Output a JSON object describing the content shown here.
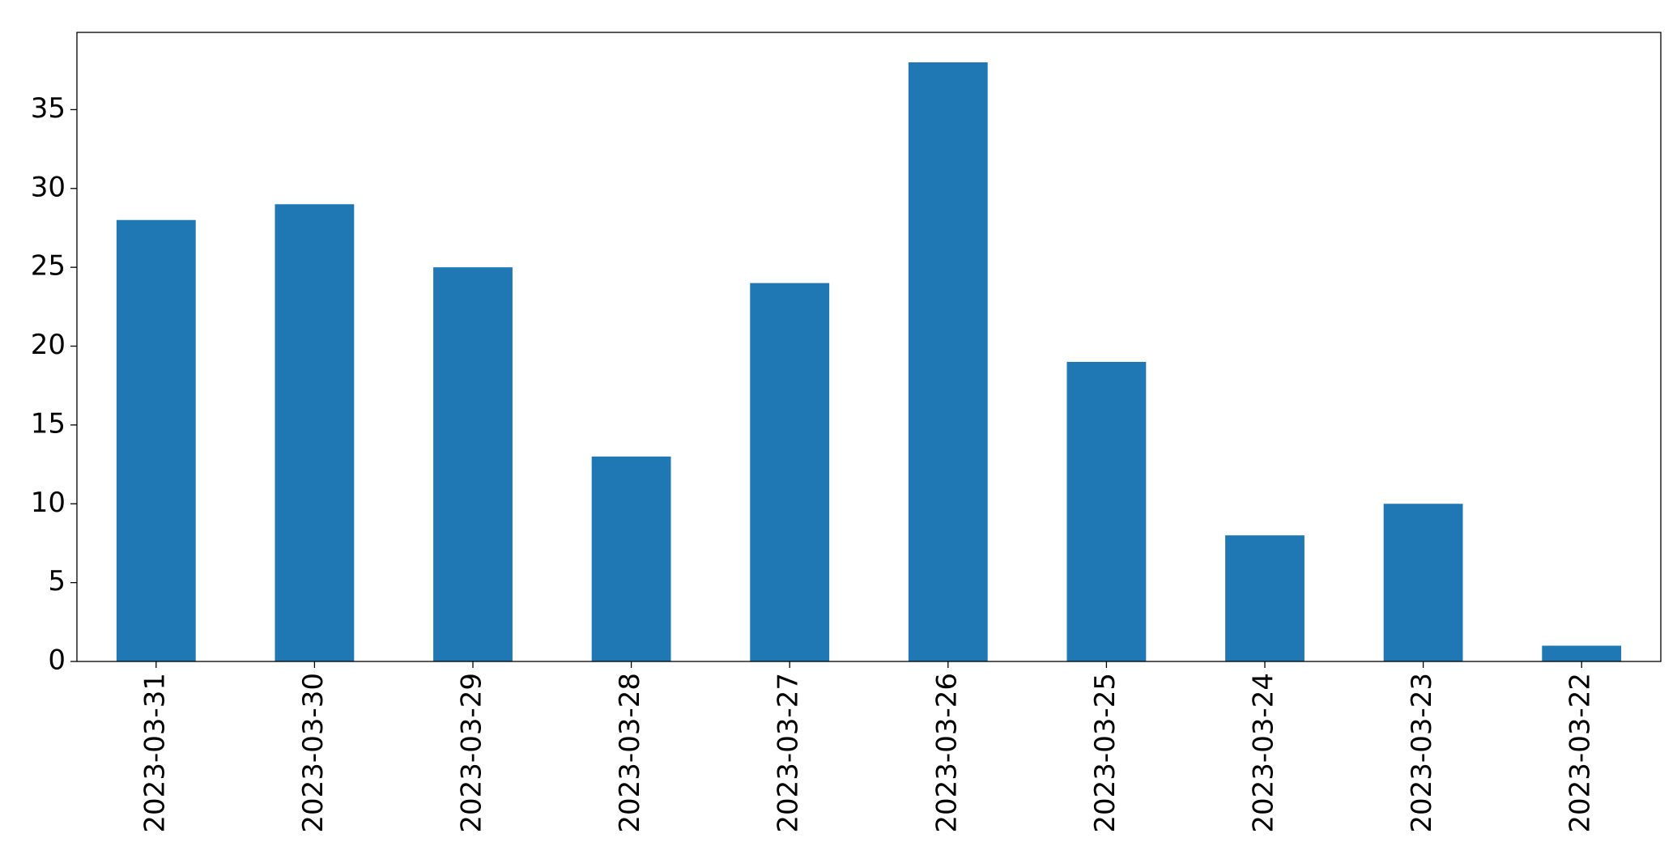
{
  "chart_data": {
    "type": "bar",
    "categories": [
      "2023-03-31",
      "2023-03-30",
      "2023-03-29",
      "2023-03-28",
      "2023-03-27",
      "2023-03-26",
      "2023-03-25",
      "2023-03-24",
      "2023-03-23",
      "2023-03-22"
    ],
    "values": [
      28,
      29,
      25,
      13,
      24,
      38,
      19,
      8,
      10,
      1
    ],
    "color": "#1f77b4",
    "ylim": [
      0,
      39.9
    ],
    "yticks": [
      0,
      5,
      10,
      15,
      20,
      25,
      30,
      35
    ],
    "grid": false
  }
}
